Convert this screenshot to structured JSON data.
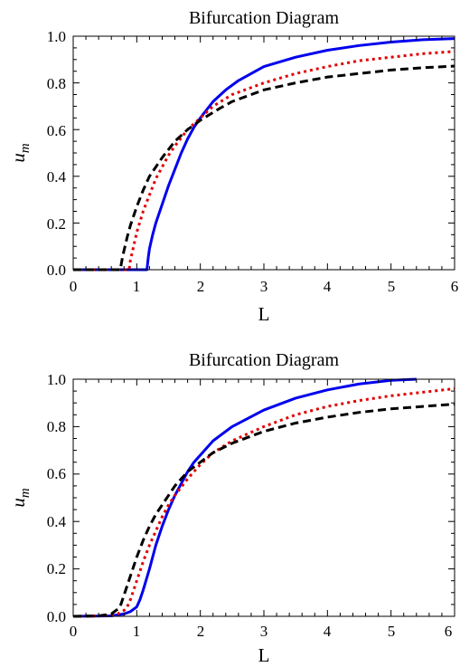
{
  "chart_data": [
    {
      "type": "line",
      "title": "Bifurcation Diagram",
      "xlabel": "L",
      "ylabel": "u",
      "ylabel_subscript": "m",
      "xlim": [
        0,
        6
      ],
      "ylim": [
        0,
        1
      ],
      "xticks": [
        "0",
        "1",
        "2",
        "3",
        "4",
        "5",
        "6"
      ],
      "yticks": [
        "0.0",
        "0.2",
        "0.4",
        "0.6",
        "0.8",
        "1.0"
      ],
      "grid": false,
      "legend": "none",
      "series": [
        {
          "style": "solid",
          "color": "#0000ee",
          "x": [
            0,
            1.16,
            1.18,
            1.2,
            1.25,
            1.3,
            1.4,
            1.5,
            1.6,
            1.7,
            1.8,
            1.9,
            2.0,
            2.2,
            2.4,
            2.6,
            2.8,
            3.0,
            3.5,
            4.0,
            4.5,
            5.0,
            5.5,
            6.0
          ],
          "y": [
            0,
            0,
            0.05,
            0.09,
            0.15,
            0.2,
            0.28,
            0.36,
            0.43,
            0.5,
            0.56,
            0.61,
            0.65,
            0.72,
            0.77,
            0.81,
            0.84,
            0.87,
            0.91,
            0.94,
            0.96,
            0.975,
            0.985,
            0.99
          ]
        },
        {
          "style": "dotted",
          "color": "#e00000",
          "x": [
            0,
            0.88,
            0.9,
            0.95,
            1.0,
            1.1,
            1.2,
            1.3,
            1.4,
            1.5,
            1.6,
            1.8,
            2.0,
            2.2,
            2.5,
            3.0,
            3.5,
            4.0,
            4.5,
            5.0,
            5.5,
            6.0
          ],
          "y": [
            0,
            0,
            0.04,
            0.1,
            0.16,
            0.25,
            0.32,
            0.39,
            0.44,
            0.49,
            0.53,
            0.6,
            0.65,
            0.7,
            0.75,
            0.8,
            0.84,
            0.87,
            0.895,
            0.91,
            0.925,
            0.935
          ]
        },
        {
          "style": "dashed",
          "color": "#000000",
          "x": [
            0,
            0.74,
            0.78,
            0.85,
            0.9,
            1.0,
            1.1,
            1.2,
            1.3,
            1.4,
            1.6,
            1.8,
            2.0,
            2.3,
            2.5,
            3.0,
            3.5,
            4.0,
            4.5,
            5.0,
            5.5,
            6.0
          ],
          "y": [
            0,
            0,
            0.06,
            0.14,
            0.19,
            0.27,
            0.34,
            0.4,
            0.44,
            0.48,
            0.55,
            0.6,
            0.64,
            0.69,
            0.72,
            0.77,
            0.8,
            0.825,
            0.84,
            0.855,
            0.865,
            0.872
          ]
        }
      ]
    },
    {
      "type": "line",
      "title": "Bifurcation Diagram",
      "xlabel": "L",
      "ylabel": "u",
      "ylabel_subscript": "m",
      "xlim": [
        0,
        6
      ],
      "ylim": [
        0,
        1
      ],
      "xticks": [
        "0",
        "1",
        "2",
        "3",
        "4",
        "5",
        "6"
      ],
      "yticks": [
        "0.0",
        "0.2",
        "0.4",
        "0.6",
        "0.8",
        "1.0"
      ],
      "grid": false,
      "legend": "none",
      "series": [
        {
          "style": "solid",
          "color": "#0000ee",
          "x": [
            0,
            0.6,
            0.8,
            0.9,
            1.0,
            1.05,
            1.1,
            1.2,
            1.3,
            1.4,
            1.5,
            1.6,
            1.7,
            1.8,
            1.9,
            2.0,
            2.2,
            2.5,
            3.0,
            3.5,
            4.0,
            4.5,
            5.0,
            5.4
          ],
          "y": [
            0,
            0.002,
            0.01,
            0.02,
            0.04,
            0.07,
            0.11,
            0.2,
            0.3,
            0.38,
            0.45,
            0.51,
            0.56,
            0.61,
            0.65,
            0.68,
            0.74,
            0.8,
            0.87,
            0.92,
            0.955,
            0.98,
            0.995,
            1.0
          ]
        },
        {
          "style": "dotted",
          "color": "#e00000",
          "x": [
            0,
            0.5,
            0.7,
            0.8,
            0.85,
            0.9,
            1.0,
            1.1,
            1.2,
            1.3,
            1.4,
            1.5,
            1.6,
            1.8,
            2.0,
            2.2,
            2.5,
            3.0,
            3.5,
            4.0,
            4.5,
            5.0,
            5.5,
            6.0
          ],
          "y": [
            0,
            0.002,
            0.01,
            0.025,
            0.04,
            0.07,
            0.15,
            0.23,
            0.3,
            0.36,
            0.42,
            0.47,
            0.51,
            0.58,
            0.64,
            0.69,
            0.74,
            0.8,
            0.85,
            0.885,
            0.91,
            0.93,
            0.945,
            0.96
          ]
        },
        {
          "style": "dashed",
          "color": "#000000",
          "x": [
            0,
            0.4,
            0.6,
            0.7,
            0.75,
            0.8,
            0.9,
            1.0,
            1.1,
            1.2,
            1.3,
            1.4,
            1.6,
            1.8,
            2.0,
            2.2,
            2.5,
            3.0,
            3.5,
            4.0,
            4.5,
            5.0,
            5.5,
            6.0
          ],
          "y": [
            0,
            0.002,
            0.01,
            0.03,
            0.05,
            0.09,
            0.17,
            0.25,
            0.32,
            0.38,
            0.43,
            0.47,
            0.55,
            0.61,
            0.65,
            0.69,
            0.73,
            0.78,
            0.815,
            0.84,
            0.86,
            0.875,
            0.885,
            0.895
          ]
        }
      ]
    }
  ]
}
